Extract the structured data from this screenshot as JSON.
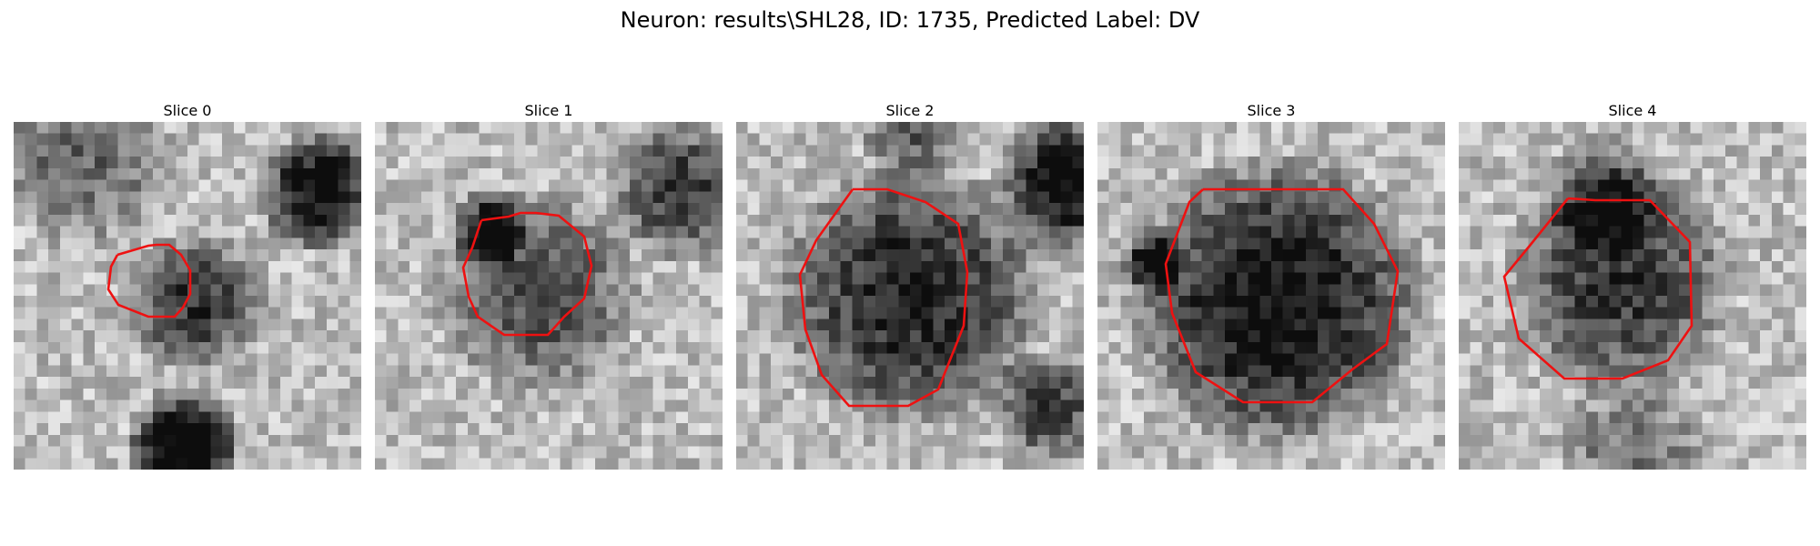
{
  "title": "Neuron: results\\SHL28, ID: 1735, Predicted Label: DV",
  "colors": {
    "contour": "#ee1111"
  },
  "slices": [
    {
      "label": "Slice 0"
    },
    {
      "label": "Slice 1"
    },
    {
      "label": "Slice 2"
    },
    {
      "label": "Slice 3"
    },
    {
      "label": "Slice 4"
    }
  ]
}
